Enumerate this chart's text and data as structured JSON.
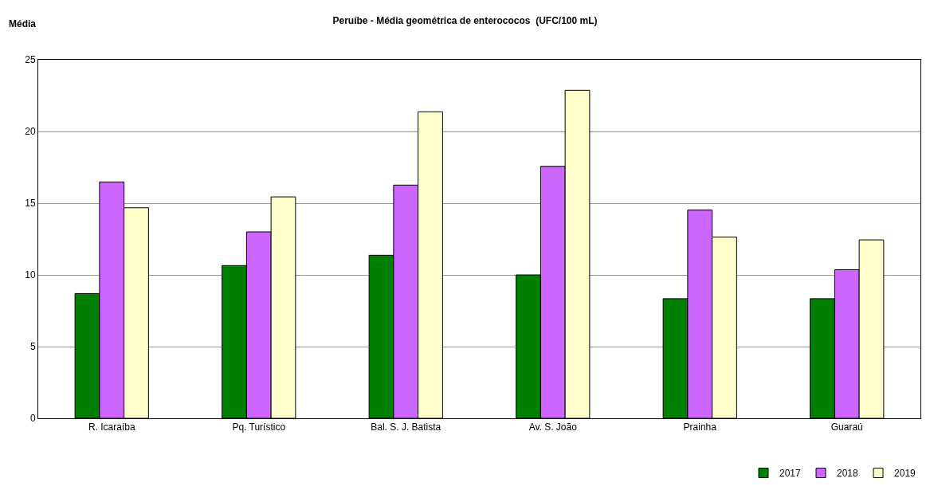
{
  "chart_data": {
    "type": "bar",
    "title": "Peruíbe - Média geométrica de enterococos  (UFC/100 mL)",
    "ylabel": "Média",
    "categories": [
      "R. Icaraíba",
      "Pq. Turístico",
      "Bal. S. J. Batista",
      "Av. S. João",
      "Prainha",
      "Guaraú"
    ],
    "series": [
      {
        "name": "2017",
        "color": "#008000",
        "values": [
          8.7,
          10.65,
          11.37,
          10.0,
          8.34,
          8.34
        ]
      },
      {
        "name": "2018",
        "color": "#cc66ff",
        "values": [
          16.48,
          13.0,
          16.26,
          17.57,
          14.52,
          10.36
        ]
      },
      {
        "name": "2019",
        "color": "#ffffcc",
        "values": [
          14.68,
          15.44,
          21.37,
          22.87,
          12.64,
          12.44
        ]
      }
    ],
    "ylim": [
      0,
      25
    ],
    "yticks": [
      0,
      5,
      10,
      15,
      20,
      25
    ],
    "grid": "y",
    "legend": "bottom right"
  }
}
